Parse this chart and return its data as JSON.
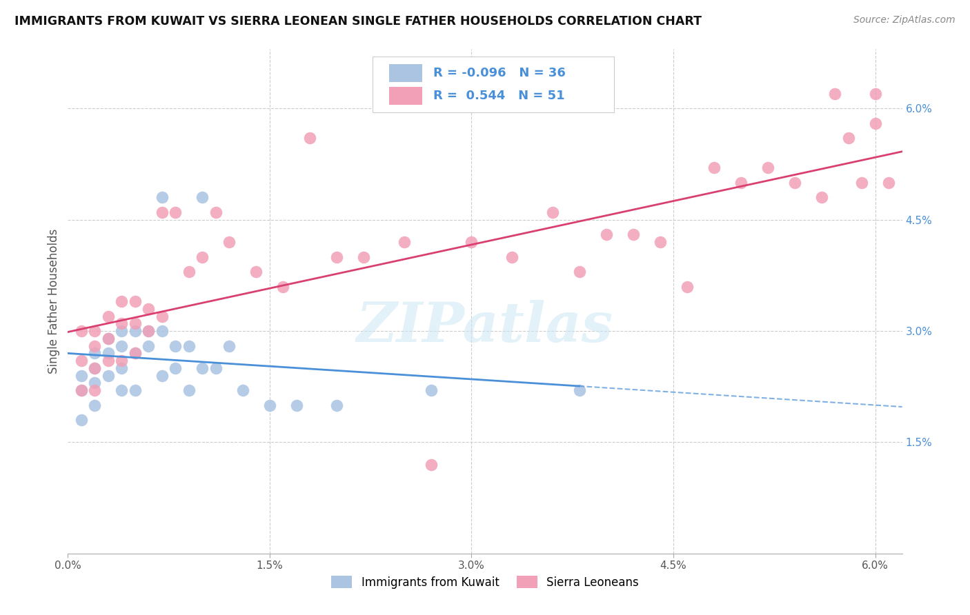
{
  "title": "IMMIGRANTS FROM KUWAIT VS SIERRA LEONEAN SINGLE FATHER HOUSEHOLDS CORRELATION CHART",
  "source": "Source: ZipAtlas.com",
  "ylabel": "Single Father Households",
  "xlim": [
    0.0,
    0.062
  ],
  "ylim": [
    0.0,
    0.068
  ],
  "xtick_positions": [
    0.0,
    0.015,
    0.03,
    0.045,
    0.06
  ],
  "xtick_labels": [
    "0.0%",
    "1.5%",
    "3.0%",
    "4.5%",
    "6.0%"
  ],
  "ytick_positions": [
    0.015,
    0.03,
    0.045,
    0.06
  ],
  "ytick_labels": [
    "1.5%",
    "3.0%",
    "4.5%",
    "6.0%"
  ],
  "legend_labels": [
    "Immigrants from Kuwait",
    "Sierra Leoneans"
  ],
  "blue_R": "-0.096",
  "blue_N": "36",
  "pink_R": "0.544",
  "pink_N": "51",
  "blue_color": "#aac4e2",
  "pink_color": "#f2a0b8",
  "blue_line_color": "#4a90d9",
  "pink_line_color": "#d94070",
  "watermark_text": "ZIPatlas",
  "blue_x": [
    0.001,
    0.001,
    0.001,
    0.002,
    0.002,
    0.002,
    0.002,
    0.003,
    0.003,
    0.003,
    0.004,
    0.004,
    0.004,
    0.004,
    0.005,
    0.005,
    0.005,
    0.006,
    0.006,
    0.007,
    0.007,
    0.007,
    0.008,
    0.008,
    0.009,
    0.009,
    0.01,
    0.01,
    0.011,
    0.012,
    0.013,
    0.015,
    0.017,
    0.02,
    0.027,
    0.038
  ],
  "blue_y": [
    0.024,
    0.022,
    0.018,
    0.027,
    0.025,
    0.023,
    0.02,
    0.029,
    0.027,
    0.024,
    0.03,
    0.028,
    0.025,
    0.022,
    0.03,
    0.027,
    0.022,
    0.03,
    0.028,
    0.048,
    0.03,
    0.024,
    0.028,
    0.025,
    0.028,
    0.022,
    0.048,
    0.025,
    0.025,
    0.028,
    0.022,
    0.02,
    0.02,
    0.02,
    0.022,
    0.022
  ],
  "pink_x": [
    0.001,
    0.001,
    0.001,
    0.002,
    0.002,
    0.002,
    0.002,
    0.003,
    0.003,
    0.003,
    0.004,
    0.004,
    0.004,
    0.005,
    0.005,
    0.005,
    0.006,
    0.006,
    0.007,
    0.007,
    0.008,
    0.009,
    0.01,
    0.011,
    0.012,
    0.014,
    0.016,
    0.018,
    0.02,
    0.022,
    0.025,
    0.027,
    0.03,
    0.033,
    0.036,
    0.038,
    0.04,
    0.042,
    0.044,
    0.046,
    0.048,
    0.05,
    0.052,
    0.054,
    0.056,
    0.057,
    0.058,
    0.059,
    0.06,
    0.06,
    0.061
  ],
  "pink_y": [
    0.022,
    0.03,
    0.026,
    0.03,
    0.028,
    0.025,
    0.022,
    0.032,
    0.029,
    0.026,
    0.034,
    0.031,
    0.026,
    0.034,
    0.031,
    0.027,
    0.033,
    0.03,
    0.046,
    0.032,
    0.046,
    0.038,
    0.04,
    0.046,
    0.042,
    0.038,
    0.036,
    0.056,
    0.04,
    0.04,
    0.042,
    0.012,
    0.042,
    0.04,
    0.046,
    0.038,
    0.043,
    0.043,
    0.042,
    0.036,
    0.052,
    0.05,
    0.052,
    0.05,
    0.048,
    0.062,
    0.056,
    0.05,
    0.062,
    0.058,
    0.05
  ]
}
